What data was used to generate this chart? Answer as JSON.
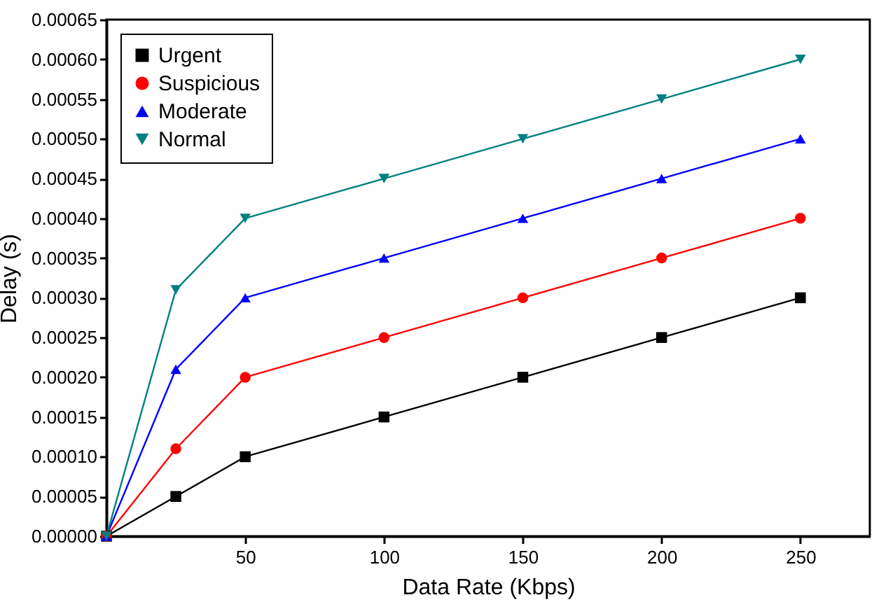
{
  "chart_data": {
    "type": "line",
    "xlabel": "Data Rate (Kbps)",
    "ylabel": "Delay (s)",
    "x": [
      0,
      25,
      50,
      100,
      150,
      200,
      250
    ],
    "xlim": [
      0,
      275
    ],
    "xticks": [
      50,
      100,
      150,
      200,
      250
    ],
    "ylim": [
      0,
      0.00065
    ],
    "yticks": [
      {
        "value": 0,
        "label": "0.00000"
      },
      {
        "value": 5e-05,
        "label": "0.00005"
      },
      {
        "value": 0.0001,
        "label": "0.00010"
      },
      {
        "value": 0.00015,
        "label": "0.00015"
      },
      {
        "value": 0.0002,
        "label": "0.00020"
      },
      {
        "value": 0.00025,
        "label": "0.00025"
      },
      {
        "value": 0.0003,
        "label": "0.00030"
      },
      {
        "value": 0.00035,
        "label": "0.00035"
      },
      {
        "value": 0.0004,
        "label": "0.00040"
      },
      {
        "value": 0.00045,
        "label": "0.00045"
      },
      {
        "value": 0.0005,
        "label": "0.00050"
      },
      {
        "value": 0.00055,
        "label": "0.00055"
      },
      {
        "value": 0.0006,
        "label": "0.00060"
      },
      {
        "value": 0.00065,
        "label": "0.00065"
      }
    ],
    "legend": "top left",
    "grid": false,
    "line_style": "solid",
    "series": [
      {
        "name": "Urgent",
        "color": "#000000",
        "marker": "square",
        "values": [
          0,
          5e-05,
          0.0001,
          0.00015,
          0.0002,
          0.00025,
          0.0003
        ]
      },
      {
        "name": "Suspicious",
        "color": "#ff0000",
        "marker": "circle",
        "values": [
          0,
          0.00011,
          0.0002,
          0.00025,
          0.0003,
          0.00035,
          0.0004
        ]
      },
      {
        "name": "Moderate",
        "color": "#0000ff",
        "marker": "triangle",
        "values": [
          0,
          0.00021,
          0.0003,
          0.00035,
          0.0004,
          0.00045,
          0.0005
        ]
      },
      {
        "name": "Normal",
        "color": "#008080",
        "marker": "triangle-down",
        "values": [
          0,
          0.00031,
          0.0004,
          0.00045,
          0.0005,
          0.00055,
          0.0006
        ]
      }
    ]
  }
}
